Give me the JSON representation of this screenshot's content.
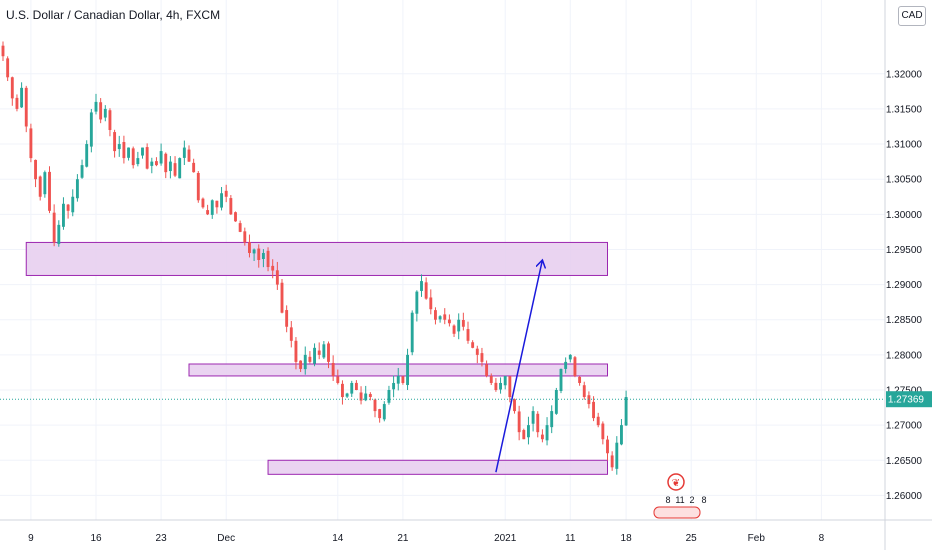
{
  "header": {
    "title": "U.S. Dollar / Canadian Dollar, 4h, FXCM",
    "currency_button": "CAD"
  },
  "colors": {
    "up": "#26a69a",
    "down": "#ef5350",
    "zone_fill": "#e6cdee",
    "zone_border": "#9c27b0",
    "arrow": "#1a1adc",
    "last_price_bg": "#26a69a"
  },
  "chart_data": {
    "type": "candlestick",
    "symbol": "USDCAD",
    "timeframe": "4h",
    "source": "FXCM",
    "ylim": [
      1.2565,
      1.3305
    ],
    "y_ticks": [
      "1.32000",
      "1.31500",
      "1.31000",
      "1.30500",
      "1.30000",
      "1.29500",
      "1.29000",
      "1.28500",
      "1.28000",
      "1.27500",
      "1.27000",
      "1.26500",
      "1.26000"
    ],
    "x_ticks": [
      "9",
      "16",
      "23",
      "Dec",
      "14",
      "21",
      "2021",
      "11",
      "18",
      "25",
      "Feb",
      "8"
    ],
    "last_price": "1.27369",
    "close_path": [
      [
        0,
        1.3225
      ],
      [
        1,
        1.3195
      ],
      [
        2,
        1.3165
      ],
      [
        3,
        1.315
      ],
      [
        4,
        1.318
      ],
      [
        5,
        1.3125
      ],
      [
        6,
        1.308
      ],
      [
        7,
        1.305
      ],
      [
        8,
        1.3025
      ],
      [
        9,
        1.306
      ],
      [
        10,
        1.3005
      ],
      [
        11,
        1.296
      ],
      [
        12,
        1.2985
      ],
      [
        13,
        1.3015
      ],
      [
        14,
        1.3005
      ],
      [
        15,
        1.3025
      ],
      [
        16,
        1.305
      ],
      [
        17,
        1.307
      ],
      [
        18,
        1.31
      ],
      [
        19,
        1.3145
      ],
      [
        20,
        1.316
      ],
      [
        21,
        1.3135
      ],
      [
        22,
        1.315
      ],
      [
        23,
        1.312
      ],
      [
        24,
        1.309
      ],
      [
        25,
        1.31
      ],
      [
        26,
        1.308
      ],
      [
        27,
        1.3095
      ],
      [
        28,
        1.307
      ],
      [
        29,
        1.308
      ],
      [
        30,
        1.3095
      ],
      [
        31,
        1.3065
      ],
      [
        32,
        1.3075
      ],
      [
        33,
        1.307
      ],
      [
        34,
        1.309
      ],
      [
        35,
        1.306
      ],
      [
        36,
        1.3075
      ],
      [
        37,
        1.3055
      ],
      [
        38,
        1.308
      ],
      [
        39,
        1.3095
      ],
      [
        40,
        1.3075
      ],
      [
        41,
        1.306
      ],
      [
        42,
        1.302
      ],
      [
        43,
        1.301
      ],
      [
        44,
        1.3
      ],
      [
        45,
        1.302
      ],
      [
        46,
        1.301
      ],
      [
        47,
        1.303
      ],
      [
        48,
        1.3025
      ],
      [
        49,
        1.3
      ],
      [
        50,
        1.299
      ],
      [
        51,
        1.2975
      ],
      [
        52,
        1.296
      ],
      [
        53,
        1.2945
      ],
      [
        54,
        1.295
      ],
      [
        55,
        1.2935
      ],
      [
        56,
        1.2945
      ],
      [
        57,
        1.2925
      ],
      [
        58,
        1.292
      ],
      [
        59,
        1.29
      ],
      [
        60,
        1.286
      ],
      [
        61,
        1.284
      ],
      [
        62,
        1.282
      ],
      [
        63,
        1.279
      ],
      [
        64,
        1.278
      ],
      [
        65,
        1.28
      ],
      [
        66,
        1.279
      ],
      [
        67,
        1.281
      ],
      [
        68,
        1.28
      ],
      [
        69,
        1.2815
      ],
      [
        70,
        1.279
      ],
      [
        71,
        1.277
      ],
      [
        72,
        1.276
      ],
      [
        73,
        1.274
      ],
      [
        74,
        1.2745
      ],
      [
        75,
        1.276
      ],
      [
        76,
        1.275
      ],
      [
        77,
        1.2735
      ],
      [
        78,
        1.2745
      ],
      [
        79,
        1.274
      ],
      [
        80,
        1.272
      ],
      [
        81,
        1.271
      ],
      [
        82,
        1.273
      ],
      [
        83,
        1.275
      ],
      [
        84,
        1.276
      ],
      [
        85,
        1.277
      ],
      [
        86,
        1.276
      ],
      [
        87,
        1.28
      ],
      [
        88,
        1.286
      ],
      [
        89,
        1.289
      ],
      [
        90,
        1.2905
      ],
      [
        91,
        1.288
      ],
      [
        92,
        1.2865
      ],
      [
        93,
        1.285
      ],
      [
        94,
        1.2855
      ],
      [
        95,
        1.285
      ],
      [
        96,
        1.2845
      ],
      [
        97,
        1.283
      ],
      [
        98,
        1.285
      ],
      [
        99,
        1.284
      ],
      [
        100,
        1.282
      ],
      [
        101,
        1.281
      ],
      [
        102,
        1.28
      ],
      [
        103,
        1.279
      ],
      [
        104,
        1.277
      ],
      [
        105,
        1.276
      ],
      [
        106,
        1.275
      ],
      [
        107,
        1.276
      ],
      [
        108,
        1.277
      ],
      [
        109,
        1.274
      ],
      [
        110,
        1.272
      ],
      [
        111,
        1.269
      ],
      [
        112,
        1.268
      ],
      [
        113,
        1.27
      ],
      [
        114,
        1.272
      ],
      [
        115,
        1.269
      ],
      [
        116,
        1.268
      ],
      [
        117,
        1.27
      ],
      [
        118,
        1.272
      ],
      [
        119,
        1.275
      ],
      [
        120,
        1.278
      ],
      [
        121,
        1.279
      ],
      [
        122,
        1.28
      ],
      [
        123,
        1.277
      ],
      [
        124,
        1.276
      ],
      [
        125,
        1.274
      ],
      [
        126,
        1.273
      ],
      [
        127,
        1.271
      ],
      [
        128,
        1.27
      ],
      [
        129,
        1.268
      ],
      [
        130,
        1.266
      ],
      [
        131,
        1.264
      ],
      [
        132,
        1.2675
      ],
      [
        133,
        1.27
      ],
      [
        134,
        1.274
      ]
    ],
    "zones": [
      {
        "x_start": 5,
        "x_end": 130,
        "y_low": 1.2913,
        "y_high": 1.296
      },
      {
        "x_start": 40,
        "x_end": 130,
        "y_low": 1.277,
        "y_high": 1.2787
      },
      {
        "x_start": 57,
        "x_end": 130,
        "y_low": 1.263,
        "y_high": 1.265
      }
    ],
    "arrow": {
      "from": [
        106,
        1.2633
      ],
      "to": [
        116,
        1.2935
      ]
    },
    "event_counts": [
      "8",
      "11",
      "2",
      "8"
    ]
  }
}
